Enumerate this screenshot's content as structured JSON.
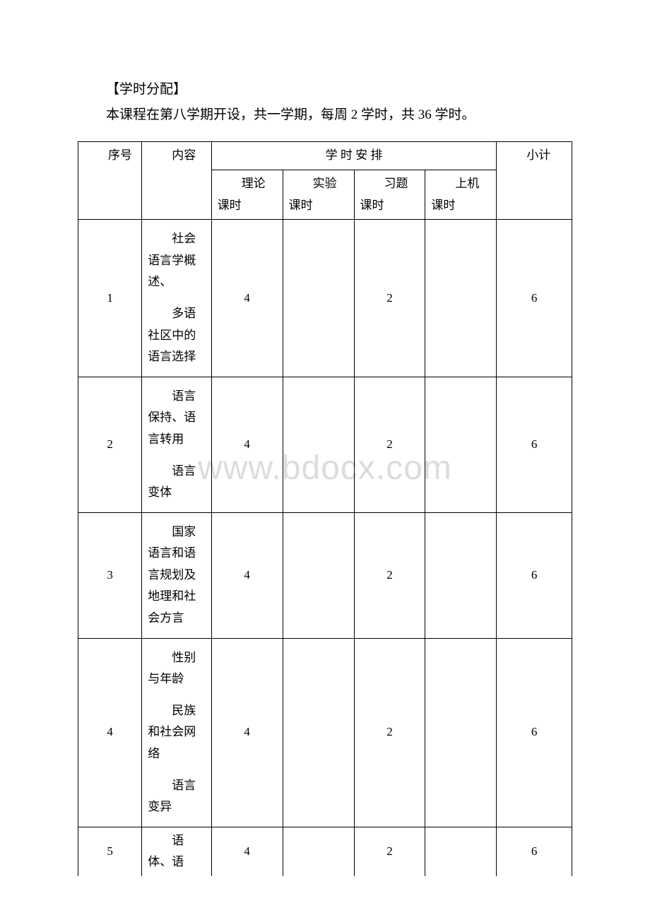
{
  "intro": {
    "title": "【学时分配】",
    "text": "本课程在第八学期开设，共一学期，每周 2 学时，共 36 学时。"
  },
  "table": {
    "headers": {
      "seq": "序号",
      "content": "内容",
      "arrangement": "学 时 安 排",
      "subtotal": "小计",
      "theory": "理论课时",
      "experiment": "实验课时",
      "exercise": "习题课时",
      "computer": "上机课时"
    },
    "rows": [
      {
        "seq": "1",
        "content_paras": [
          "社会语言学概述、",
          "多语社区中的语言选择"
        ],
        "theory": "4",
        "experiment": "",
        "exercise": "2",
        "computer": "",
        "subtotal": "6"
      },
      {
        "seq": "2",
        "content_paras": [
          "语言保持、语言转用",
          "语言变体"
        ],
        "theory": "4",
        "experiment": "",
        "exercise": "2",
        "computer": "",
        "subtotal": "6"
      },
      {
        "seq": "3",
        "content_paras": [
          "国家语言和语言规划及地理和社会方言"
        ],
        "theory": "4",
        "experiment": "",
        "exercise": "2",
        "computer": "",
        "subtotal": "6"
      },
      {
        "seq": "4",
        "content_paras": [
          "性别与年龄",
          "民族和社会网络",
          "语言变异"
        ],
        "theory": "4",
        "experiment": "",
        "exercise": "2",
        "computer": "",
        "subtotal": "6"
      },
      {
        "seq": "5",
        "content_paras": [
          "语体、语"
        ],
        "theory": "4",
        "experiment": "",
        "exercise": "2",
        "computer": "",
        "subtotal": "6"
      }
    ]
  },
  "watermark": "www.bdocx.com",
  "colors": {
    "text": "#000000",
    "border": "#000000",
    "background": "#ffffff",
    "watermark": "#dcdcdc"
  }
}
